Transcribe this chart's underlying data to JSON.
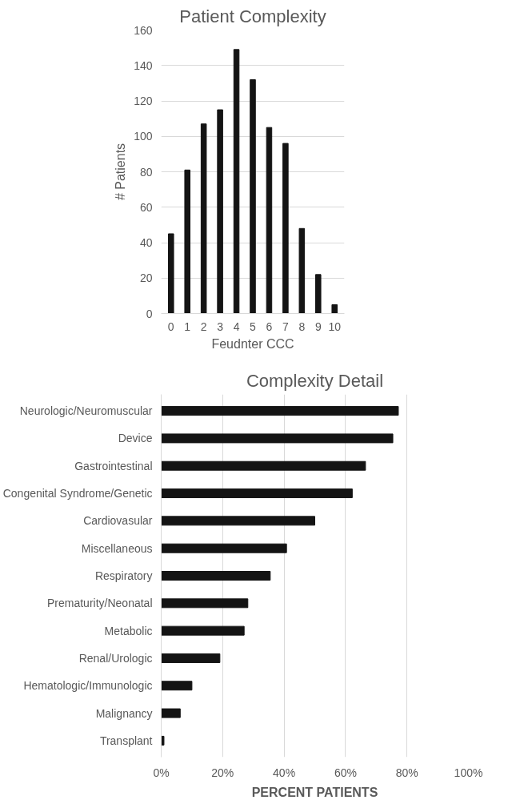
{
  "chart_data": [
    {
      "type": "bar",
      "title": "Patient Complexity",
      "xlabel": "Feudnter CCC",
      "ylabel": "# Patients",
      "categories": [
        "0",
        "1",
        "2",
        "3",
        "4",
        "5",
        "6",
        "7",
        "8",
        "9",
        "10"
      ],
      "values": [
        45,
        81,
        107,
        115,
        149,
        132,
        105,
        96,
        48,
        22,
        5
      ],
      "color": "#141414",
      "ylim": [
        0,
        160
      ],
      "yticks": [
        0,
        20,
        40,
        60,
        80,
        100,
        120,
        140,
        160
      ],
      "grid": "y"
    },
    {
      "type": "bar",
      "orientation": "horizontal",
      "title": "Complexity Detail",
      "xlabel": "PERCENT PATIENTS",
      "categories": [
        "Neurologic/Neuromuscular",
        "Device",
        "Gastrointestinal",
        "Congenital Syndrome/Genetic",
        "Cardiovasular",
        "Miscellaneous",
        "Respiratory",
        "Prematurity/Neonatal",
        "Metabolic",
        "Renal/Urologic",
        "Hematologic/Immunologic",
        "Malignancy",
        "Transplant"
      ],
      "values": [
        77.2,
        75.4,
        66.5,
        62.2,
        50.0,
        40.8,
        35.5,
        28.2,
        27.0,
        19.1,
        10.0,
        6.2,
        0.9
      ],
      "color": "#141414",
      "xlim": [
        0,
        100
      ],
      "xticks": [
        {
          "value": 0,
          "label": "0%"
        },
        {
          "value": 20,
          "label": "20%"
        },
        {
          "value": 40,
          "label": "40%"
        },
        {
          "value": 60,
          "label": "60%"
        },
        {
          "value": 80,
          "label": "80%"
        },
        {
          "value": 100,
          "label": "100%"
        }
      ],
      "grid": "x"
    }
  ]
}
